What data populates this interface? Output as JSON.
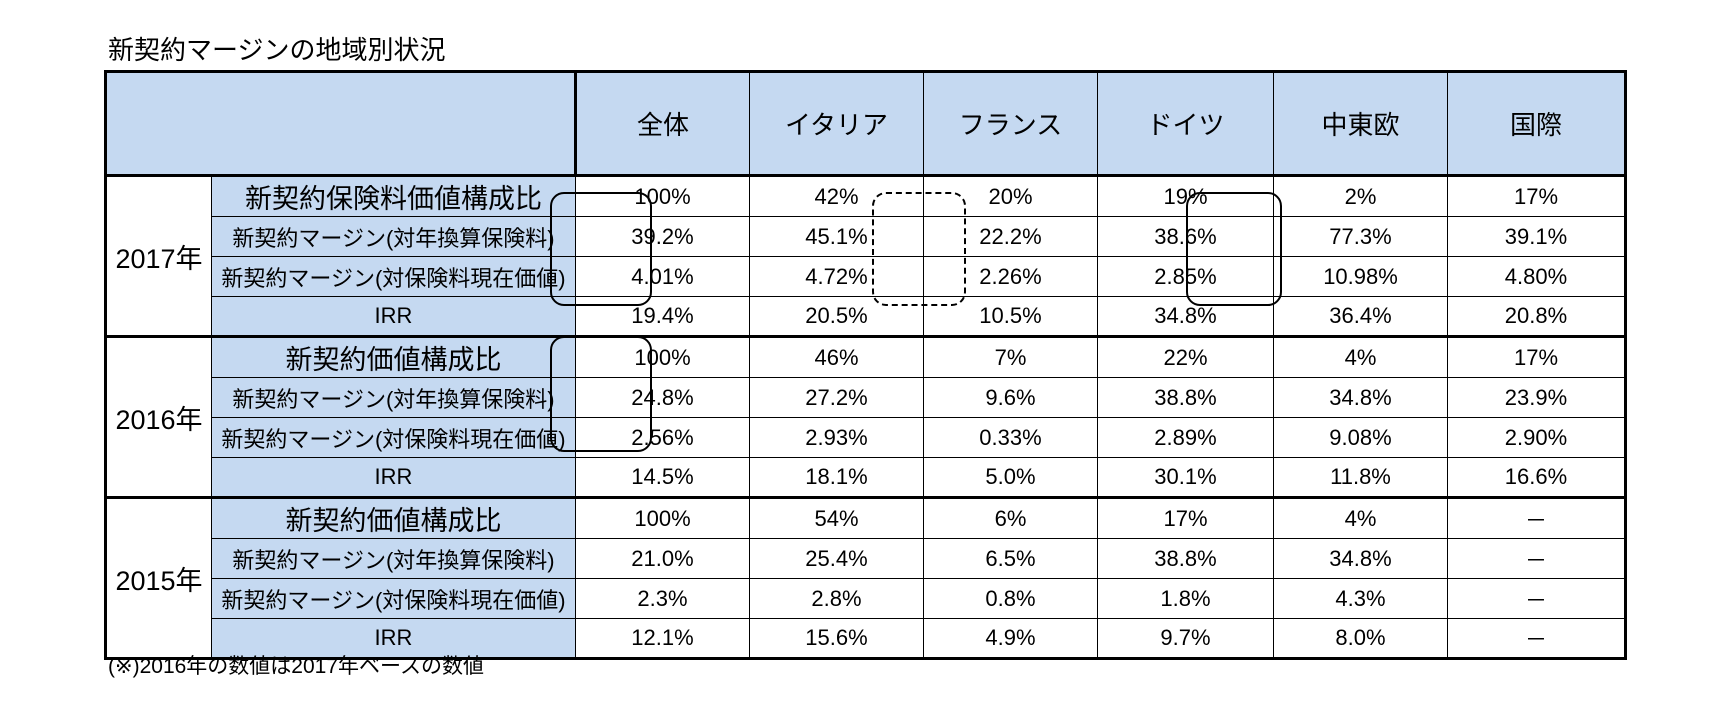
{
  "title": "新契約マージンの地域別状況",
  "note": "(※)2016年の数値は2017年ベースの数値",
  "columns": [
    "全体",
    "イタリア",
    "フランス",
    "ドイツ",
    "中東欧",
    "国際"
  ],
  "groups": [
    {
      "year": "2017年",
      "rows": [
        {
          "label": "新契約保険料価値構成比",
          "values": [
            "100%",
            "42%",
            "20%",
            "19%",
            "2%",
            "17%"
          ]
        },
        {
          "label": "新契約マージン(対年換算保険料)",
          "values": [
            "39.2%",
            "45.1%",
            "22.2%",
            "38.6%",
            "77.3%",
            "39.1%"
          ]
        },
        {
          "label": "新契約マージン(対保険料現在価値)",
          "values": [
            "4.01%",
            "4.72%",
            "2.26%",
            "2.85%",
            "10.98%",
            "4.80%"
          ]
        },
        {
          "label": "IRR",
          "values": [
            "19.4%",
            "20.5%",
            "10.5%",
            "34.8%",
            "36.4%",
            "20.8%"
          ]
        }
      ]
    },
    {
      "year": "2016年",
      "rows": [
        {
          "label": "新契約価値構成比",
          "values": [
            "100%",
            "46%",
            "7%",
            "22%",
            "4%",
            "17%"
          ]
        },
        {
          "label": "新契約マージン(対年換算保険料)",
          "values": [
            "24.8%",
            "27.2%",
            "9.6%",
            "38.8%",
            "34.8%",
            "23.9%"
          ]
        },
        {
          "label": "新契約マージン(対保険料現在価値)",
          "values": [
            "2.56%",
            "2.93%",
            "0.33%",
            "2.89%",
            "9.08%",
            "2.90%"
          ]
        },
        {
          "label": "IRR",
          "values": [
            "14.5%",
            "18.1%",
            "5.0%",
            "30.1%",
            "11.8%",
            "16.6%"
          ]
        }
      ]
    },
    {
      "year": "2015年",
      "rows": [
        {
          "label": "新契約価値構成比",
          "values": [
            "100%",
            "54%",
            "6%",
            "17%",
            "4%",
            "－"
          ]
        },
        {
          "label": "新契約マージン(対年換算保険料)",
          "values": [
            "21.0%",
            "25.4%",
            "6.5%",
            "38.8%",
            "34.8%",
            "－"
          ]
        },
        {
          "label": "新契約マージン(対保険料現在価値)",
          "values": [
            "2.3%",
            "2.8%",
            "0.8%",
            "1.8%",
            "4.3%",
            "－"
          ]
        },
        {
          "label": "IRR",
          "values": [
            "12.1%",
            "15.6%",
            "4.9%",
            "9.7%",
            "8.0%",
            "－"
          ]
        }
      ]
    }
  ]
}
